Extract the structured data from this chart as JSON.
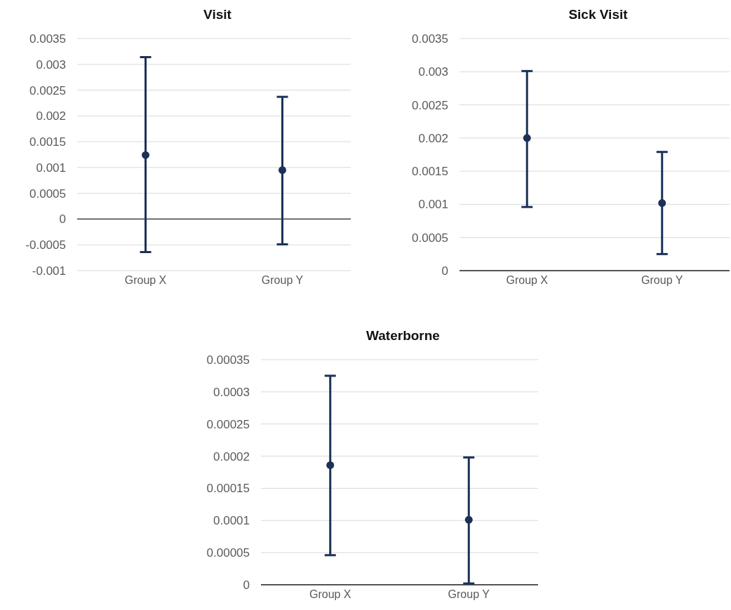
{
  "chart_data": [
    {
      "type": "scatter",
      "title": "Visit",
      "categories": [
        "Group X",
        "Group Y"
      ],
      "marker": "circle",
      "grid": "y",
      "series": [
        {
          "color": "#1b3157",
          "values": [
            0.00124,
            0.00095
          ],
          "errors": [
            [
              -0.00064,
              0.00314
            ],
            [
              -0.00049,
              0.00237
            ]
          ]
        }
      ],
      "ylim": [
        -0.001,
        0.0035
      ],
      "yticks": [
        -0.001,
        -0.0005,
        0,
        0.0005,
        0.001,
        0.0015,
        0.002,
        0.0025,
        0.003,
        0.0035
      ]
    },
    {
      "type": "scatter",
      "title": "Sick Visit",
      "categories": [
        "Group X",
        "Group Y"
      ],
      "marker": "circle",
      "grid": "y",
      "series": [
        {
          "color": "#1b3157",
          "values": [
            0.002,
            0.00102
          ],
          "errors": [
            [
              0.00096,
              0.00301
            ],
            [
              0.00025,
              0.00179
            ]
          ]
        }
      ],
      "ylim": [
        0,
        0.0035
      ],
      "yticks": [
        0,
        0.0005,
        0.001,
        0.0015,
        0.002,
        0.0025,
        0.003,
        0.0035
      ]
    },
    {
      "type": "scatter",
      "title": "Waterborne",
      "categories": [
        "Group X",
        "Group Y"
      ],
      "marker": "circle",
      "grid": "y",
      "series": [
        {
          "color": "#1b3157",
          "values": [
            0.000186,
            0.000101
          ],
          "errors": [
            [
              4.6e-05,
              0.000325
            ],
            [
              2e-06,
              0.000198
            ]
          ]
        }
      ],
      "ylim": [
        0,
        0.00035
      ],
      "yticks": [
        0,
        {
          "value": 5e-05,
          "label": "0.00005"
        },
        0.0001,
        0.00015,
        0.0002,
        0.00025,
        0.0003,
        0.00035
      ]
    }
  ]
}
